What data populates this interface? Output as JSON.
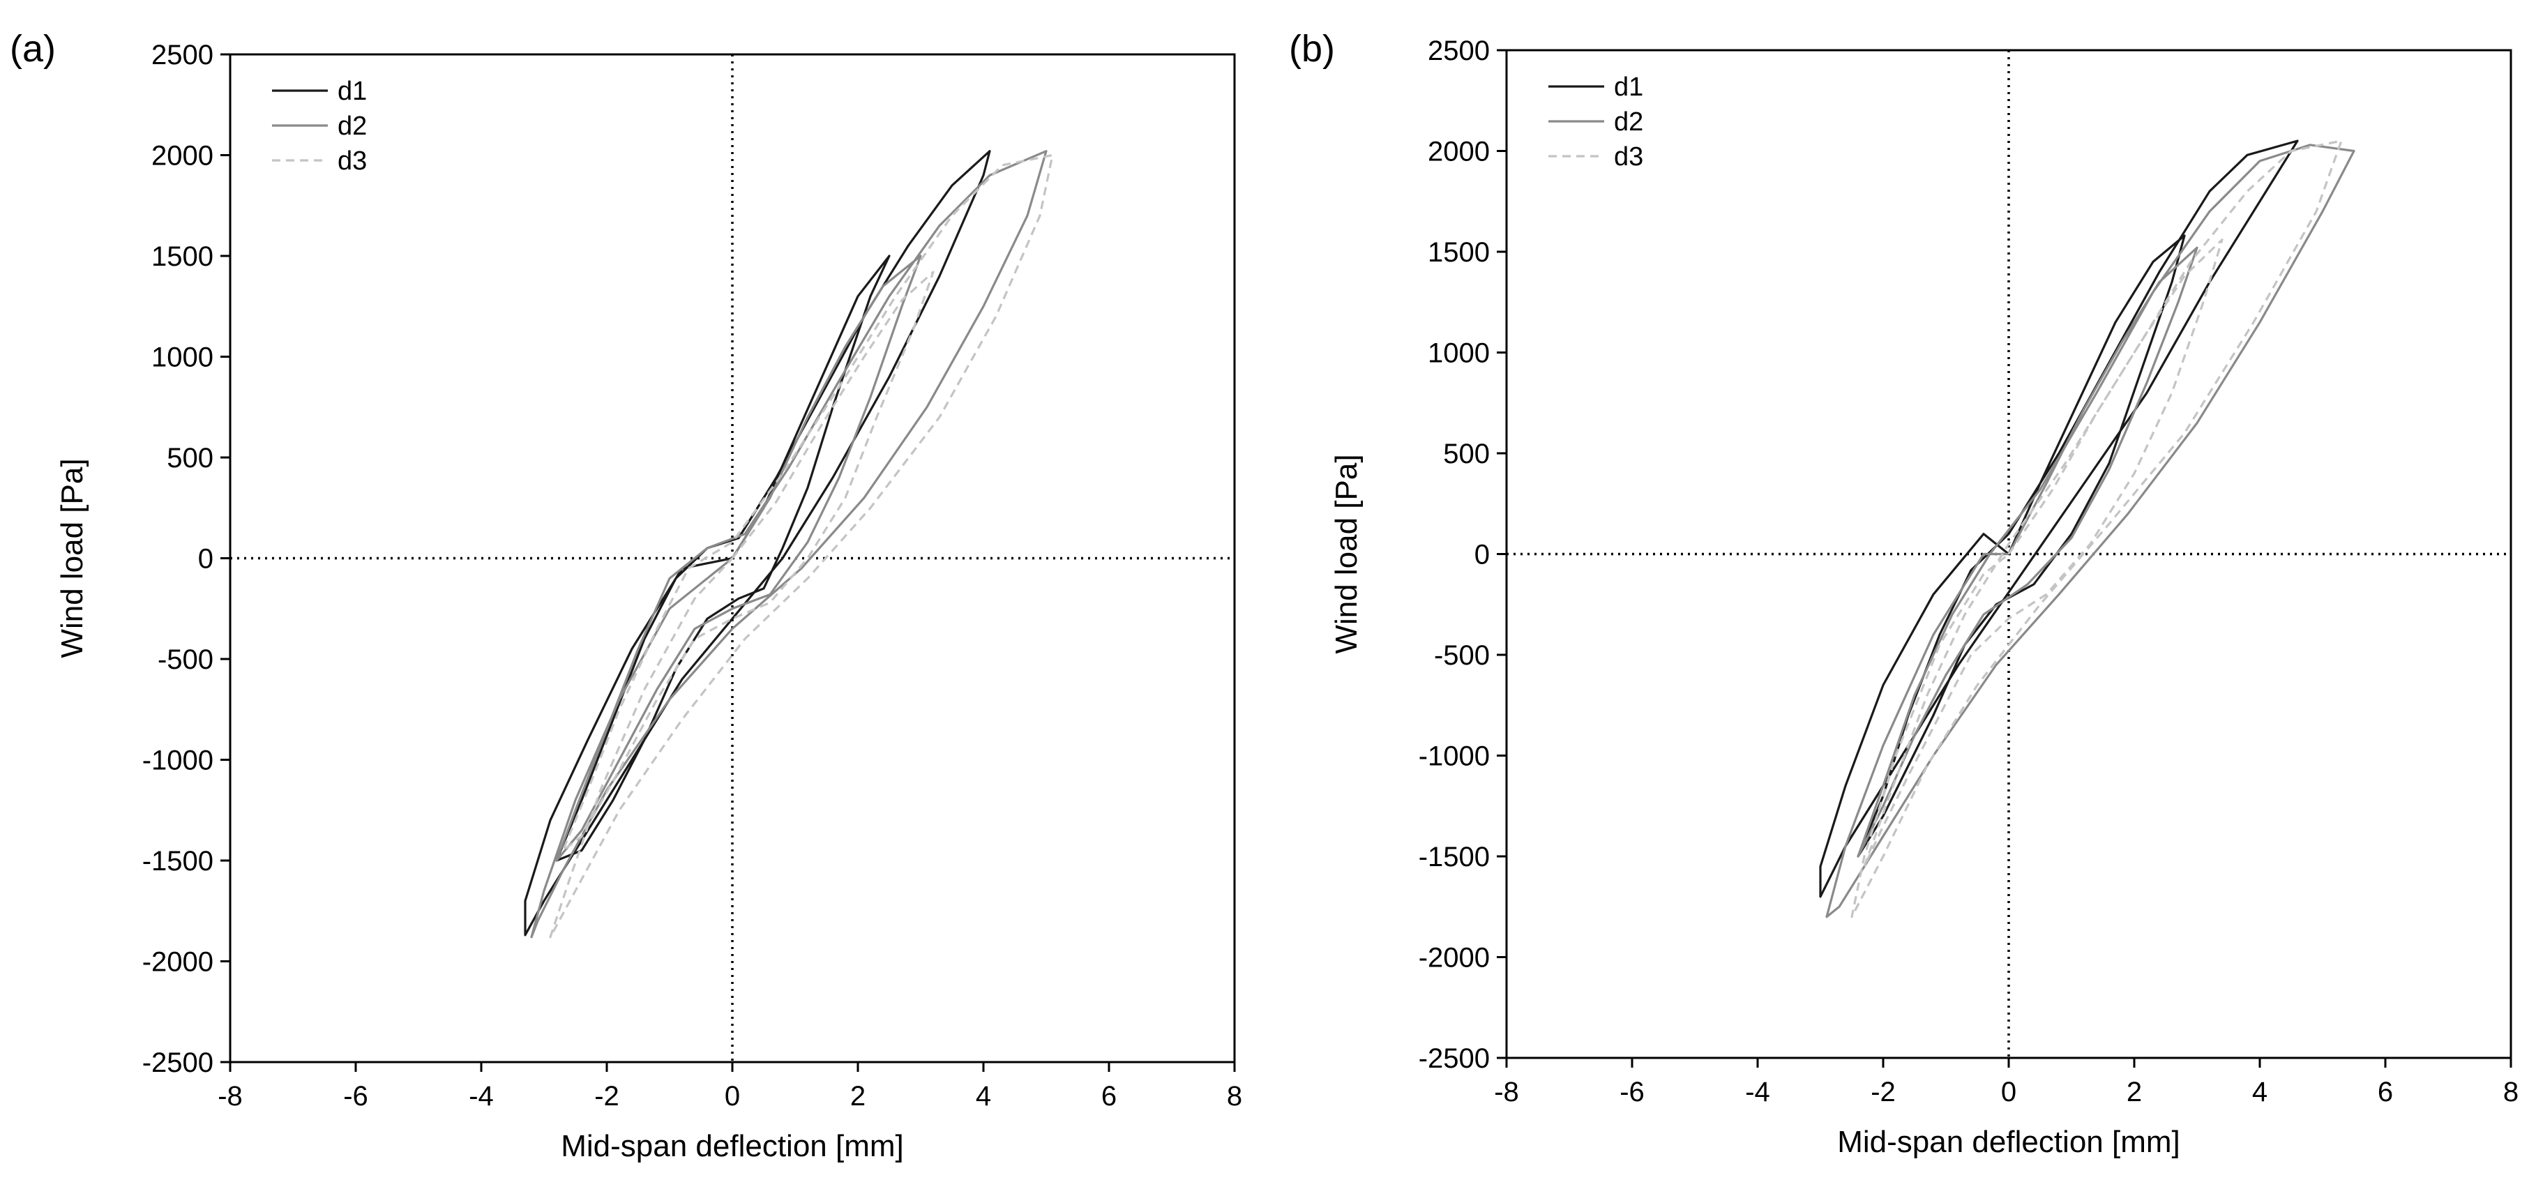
{
  "chart_data": [
    {
      "type": "line",
      "panel_label": "(a)",
      "xlabel": "Mid-span deflection [mm]",
      "ylabel": "Wind load [Pa]",
      "xlim": [
        -8,
        8
      ],
      "ylim": [
        -2500,
        2500
      ],
      "xticks": [
        -8,
        -6,
        -4,
        -2,
        0,
        2,
        4,
        6,
        8
      ],
      "yticks": [
        -2500,
        -2000,
        -1500,
        -1000,
        -500,
        0,
        500,
        1000,
        1500,
        2000,
        2500
      ],
      "zero_lines": "dotted",
      "legend_position": "top-left",
      "series": [
        {
          "name": "d1",
          "color": "#1a1a1a",
          "dash": "solid",
          "points": [
            [
              0,
              0
            ],
            [
              0.5,
              250
            ],
            [
              1.0,
              600
            ],
            [
              1.5,
              950
            ],
            [
              2.0,
              1300
            ],
            [
              2.5,
              1500
            ],
            [
              2.2,
              1300
            ],
            [
              1.6,
              750
            ],
            [
              1.2,
              350
            ],
            [
              0.8,
              50
            ],
            [
              0.5,
              -150
            ],
            [
              0.1,
              -200
            ],
            [
              -0.4,
              -300
            ],
            [
              -0.9,
              -550
            ],
            [
              -1.4,
              -900
            ],
            [
              -1.9,
              -1200
            ],
            [
              -2.4,
              -1450
            ],
            [
              -2.8,
              -1500
            ],
            [
              -2.4,
              -1200
            ],
            [
              -1.9,
              -800
            ],
            [
              -1.4,
              -400
            ],
            [
              -0.9,
              -100
            ],
            [
              -0.4,
              50
            ],
            [
              0.1,
              100
            ],
            [
              0.7,
              400
            ],
            [
              1.4,
              800
            ],
            [
              2.1,
              1200
            ],
            [
              2.8,
              1550
            ],
            [
              3.5,
              1850
            ],
            [
              4.1,
              2020
            ],
            [
              4.0,
              1900
            ],
            [
              3.3,
              1400
            ],
            [
              2.5,
              900
            ],
            [
              1.6,
              400
            ],
            [
              0.8,
              0
            ],
            [
              0,
              -300
            ],
            [
              -0.8,
              -600
            ],
            [
              -1.6,
              -1000
            ],
            [
              -2.4,
              -1400
            ],
            [
              -3.0,
              -1700
            ],
            [
              -3.3,
              -1870
            ],
            [
              -3.3,
              -1700
            ],
            [
              -2.9,
              -1300
            ],
            [
              -2.3,
              -900
            ],
            [
              -1.6,
              -450
            ],
            [
              -0.8,
              -50
            ],
            [
              0,
              0
            ]
          ]
        },
        {
          "name": "d2",
          "color": "#8a8a8a",
          "dash": "solid",
          "points": [
            [
              0,
              0
            ],
            [
              0.6,
              300
            ],
            [
              1.2,
              700
            ],
            [
              1.8,
              1050
            ],
            [
              2.4,
              1350
            ],
            [
              3.0,
              1500
            ],
            [
              2.7,
              1250
            ],
            [
              2.2,
              800
            ],
            [
              1.7,
              400
            ],
            [
              1.2,
              80
            ],
            [
              0.6,
              -180
            ],
            [
              0,
              -250
            ],
            [
              -0.6,
              -350
            ],
            [
              -1.2,
              -650
            ],
            [
              -1.8,
              -1000
            ],
            [
              -2.4,
              -1350
            ],
            [
              -2.8,
              -1500
            ],
            [
              -2.5,
              -1250
            ],
            [
              -2.0,
              -850
            ],
            [
              -1.5,
              -450
            ],
            [
              -1.0,
              -100
            ],
            [
              -0.4,
              50
            ],
            [
              0.2,
              120
            ],
            [
              0.9,
              450
            ],
            [
              1.7,
              880
            ],
            [
              2.5,
              1300
            ],
            [
              3.3,
              1650
            ],
            [
              4.1,
              1900
            ],
            [
              5.0,
              2020
            ],
            [
              4.7,
              1700
            ],
            [
              4.0,
              1250
            ],
            [
              3.1,
              750
            ],
            [
              2.1,
              300
            ],
            [
              1.1,
              -50
            ],
            [
              0,
              -350
            ],
            [
              -1.0,
              -700
            ],
            [
              -2.0,
              -1150
            ],
            [
              -2.7,
              -1550
            ],
            [
              -3.1,
              -1800
            ],
            [
              -3.2,
              -1880
            ],
            [
              -3.0,
              -1650
            ],
            [
              -2.5,
              -1200
            ],
            [
              -1.8,
              -700
            ],
            [
              -1.0,
              -250
            ],
            [
              0,
              0
            ]
          ]
        },
        {
          "name": "d3",
          "color": "#c4c4c4",
          "dash": "dashed",
          "points": [
            [
              0,
              0
            ],
            [
              0.7,
              280
            ],
            [
              1.4,
              650
            ],
            [
              2.1,
              1000
            ],
            [
              2.7,
              1280
            ],
            [
              3.2,
              1420
            ],
            [
              2.9,
              1150
            ],
            [
              2.3,
              700
            ],
            [
              1.8,
              300
            ],
            [
              1.2,
              0
            ],
            [
              0.6,
              -220
            ],
            [
              0,
              -300
            ],
            [
              -0.6,
              -400
            ],
            [
              -1.2,
              -700
            ],
            [
              -1.8,
              -1050
            ],
            [
              -2.4,
              -1380
            ],
            [
              -2.7,
              -1450
            ],
            [
              -2.3,
              -1150
            ],
            [
              -1.8,
              -750
            ],
            [
              -1.2,
              -350
            ],
            [
              -0.7,
              -50
            ],
            [
              0,
              80
            ],
            [
              0.8,
              420
            ],
            [
              1.7,
              850
            ],
            [
              2.6,
              1300
            ],
            [
              3.5,
              1700
            ],
            [
              4.3,
              1950
            ],
            [
              5.1,
              2000
            ],
            [
              4.9,
              1700
            ],
            [
              4.2,
              1200
            ],
            [
              3.3,
              700
            ],
            [
              2.2,
              250
            ],
            [
              1.2,
              -100
            ],
            [
              0.2,
              -400
            ],
            [
              -0.8,
              -800
            ],
            [
              -1.8,
              -1250
            ],
            [
              -2.5,
              -1650
            ],
            [
              -2.9,
              -1880
            ],
            [
              -2.6,
              -1600
            ],
            [
              -2.1,
              -1150
            ],
            [
              -1.4,
              -650
            ],
            [
              -0.6,
              -200
            ],
            [
              0,
              0
            ]
          ]
        }
      ]
    },
    {
      "type": "line",
      "panel_label": "(b)",
      "xlabel": "Mid-span deflection [mm]",
      "ylabel": "Wind load [Pa]",
      "xlim": [
        -8,
        8
      ],
      "ylim": [
        -2500,
        2500
      ],
      "xticks": [
        -8,
        -6,
        -4,
        -2,
        0,
        2,
        4,
        6,
        8
      ],
      "yticks": [
        -2500,
        -2000,
        -1500,
        -1000,
        -500,
        0,
        500,
        1000,
        1500,
        2000,
        2500
      ],
      "zero_lines": "dotted",
      "legend_position": "top-left",
      "series": [
        {
          "name": "d1",
          "color": "#1a1a1a",
          "dash": "solid",
          "points": [
            [
              0,
              0
            ],
            [
              0.5,
              350
            ],
            [
              1.1,
              750
            ],
            [
              1.7,
              1150
            ],
            [
              2.3,
              1450
            ],
            [
              2.8,
              1580
            ],
            [
              2.6,
              1350
            ],
            [
              2.1,
              900
            ],
            [
              1.6,
              450
            ],
            [
              1.0,
              100
            ],
            [
              0.4,
              -150
            ],
            [
              -0.2,
              -250
            ],
            [
              -0.7,
              -450
            ],
            [
              -1.2,
              -800
            ],
            [
              -1.6,
              -1050
            ],
            [
              -2.0,
              -1300
            ],
            [
              -2.4,
              -1500
            ],
            [
              -2.0,
              -1200
            ],
            [
              -1.6,
              -800
            ],
            [
              -1.1,
              -400
            ],
            [
              -0.6,
              -80
            ],
            [
              0,
              100
            ],
            [
              0.8,
              500
            ],
            [
              1.6,
              950
            ],
            [
              2.4,
              1400
            ],
            [
              3.2,
              1800
            ],
            [
              3.8,
              1980
            ],
            [
              4.6,
              2050
            ],
            [
              4.2,
              1850
            ],
            [
              3.2,
              1350
            ],
            [
              2.2,
              800
            ],
            [
              1.2,
              350
            ],
            [
              0.2,
              -100
            ],
            [
              -0.8,
              -550
            ],
            [
              -1.8,
              -1050
            ],
            [
              -2.6,
              -1450
            ],
            [
              -3.0,
              -1700
            ],
            [
              -3.0,
              -1550
            ],
            [
              -2.6,
              -1150
            ],
            [
              -2.0,
              -650
            ],
            [
              -1.2,
              -200
            ],
            [
              -0.4,
              100
            ],
            [
              0,
              0
            ]
          ]
        },
        {
          "name": "d2",
          "color": "#8a8a8a",
          "dash": "solid",
          "points": [
            [
              0,
              0
            ],
            [
              0.6,
              350
            ],
            [
              1.2,
              720
            ],
            [
              1.8,
              1050
            ],
            [
              2.4,
              1350
            ],
            [
              3.0,
              1520
            ],
            [
              2.7,
              1250
            ],
            [
              2.2,
              850
            ],
            [
              1.6,
              420
            ],
            [
              1.0,
              80
            ],
            [
              0.3,
              -150
            ],
            [
              -0.4,
              -300
            ],
            [
              -1.0,
              -600
            ],
            [
              -1.5,
              -900
            ],
            [
              -2.0,
              -1250
            ],
            [
              -2.4,
              -1500
            ],
            [
              -2.0,
              -1150
            ],
            [
              -1.5,
              -700
            ],
            [
              -0.9,
              -300
            ],
            [
              -0.3,
              0
            ],
            [
              0.5,
              320
            ],
            [
              1.4,
              800
            ],
            [
              2.3,
              1300
            ],
            [
              3.2,
              1700
            ],
            [
              4.0,
              1950
            ],
            [
              4.8,
              2030
            ],
            [
              5.5,
              2000
            ],
            [
              5.0,
              1700
            ],
            [
              4.0,
              1150
            ],
            [
              3.0,
              650
            ],
            [
              1.9,
              200
            ],
            [
              0.8,
              -200
            ],
            [
              -0.2,
              -550
            ],
            [
              -1.2,
              -1000
            ],
            [
              -2.1,
              -1450
            ],
            [
              -2.7,
              -1750
            ],
            [
              -2.9,
              -1800
            ],
            [
              -2.6,
              -1450
            ],
            [
              -2.0,
              -950
            ],
            [
              -1.2,
              -400
            ],
            [
              -0.4,
              0
            ],
            [
              0,
              0
            ]
          ]
        },
        {
          "name": "d3",
          "color": "#c4c4c4",
          "dash": "dashed",
          "points": [
            [
              0,
              0
            ],
            [
              0.7,
              320
            ],
            [
              1.4,
              700
            ],
            [
              2.1,
              1050
            ],
            [
              2.8,
              1380
            ],
            [
              3.4,
              1560
            ],
            [
              3.1,
              1250
            ],
            [
              2.6,
              800
            ],
            [
              2.0,
              400
            ],
            [
              1.3,
              50
            ],
            [
              0.6,
              -200
            ],
            [
              0,
              -320
            ],
            [
              -0.6,
              -500
            ],
            [
              -1.1,
              -800
            ],
            [
              -1.6,
              -1100
            ],
            [
              -2.0,
              -1350
            ],
            [
              -2.3,
              -1550
            ],
            [
              -1.9,
              -1200
            ],
            [
              -1.3,
              -700
            ],
            [
              -0.7,
              -300
            ],
            [
              0,
              50
            ],
            [
              0.9,
              450
            ],
            [
              1.9,
              950
            ],
            [
              2.9,
              1450
            ],
            [
              3.8,
              1800
            ],
            [
              4.5,
              2000
            ],
            [
              5.3,
              2050
            ],
            [
              4.9,
              1700
            ],
            [
              3.9,
              1150
            ],
            [
              2.8,
              600
            ],
            [
              1.6,
              150
            ],
            [
              0.5,
              -250
            ],
            [
              -0.5,
              -650
            ],
            [
              -1.3,
              -1050
            ],
            [
              -2.0,
              -1500
            ],
            [
              -2.5,
              -1800
            ],
            [
              -2.3,
              -1500
            ],
            [
              -1.8,
              -1000
            ],
            [
              -1.1,
              -450
            ],
            [
              -0.4,
              -100
            ],
            [
              0,
              0
            ]
          ]
        }
      ]
    }
  ]
}
